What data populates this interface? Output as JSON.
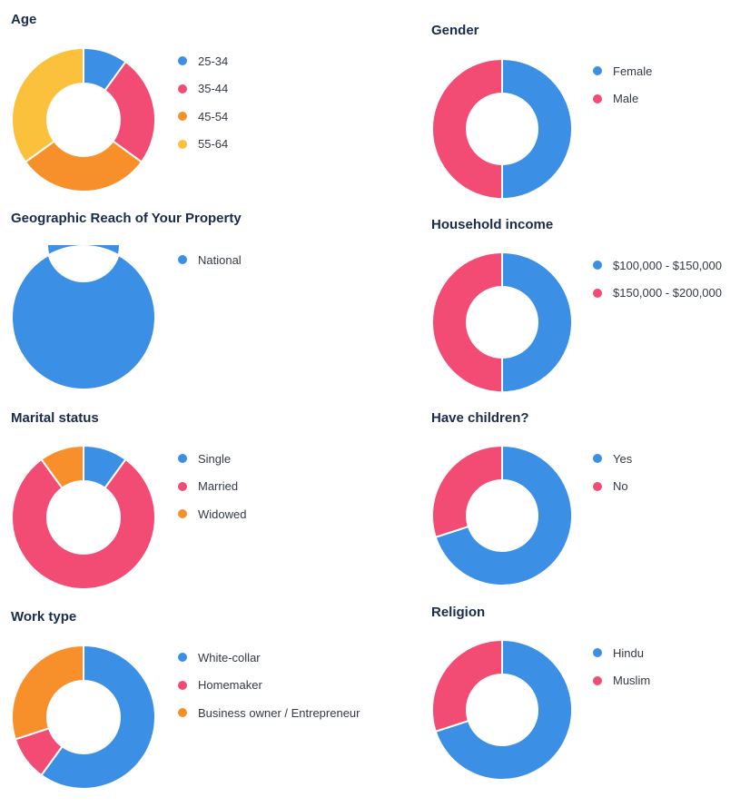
{
  "colors": {
    "blue": "#3b8fe4",
    "pink": "#f24b74",
    "orange": "#f7902b",
    "yellow": "#fbc13d"
  },
  "chart_data": [
    {
      "id": "age",
      "type": "pie",
      "title": "Age",
      "categories": [
        "25-34",
        "35-44",
        "45-54",
        "55-64"
      ],
      "values": [
        10,
        25,
        30,
        35
      ],
      "colors": [
        "#3b8fe4",
        "#f24b74",
        "#f7902b",
        "#fbc13d"
      ]
    },
    {
      "id": "gender",
      "type": "pie",
      "title": "Gender",
      "categories": [
        "Female",
        "Male"
      ],
      "values": [
        50,
        50
      ],
      "colors": [
        "#3b8fe4",
        "#f24b74"
      ]
    },
    {
      "id": "geo",
      "type": "pie",
      "title": "Geographic Reach of Your Property",
      "categories": [
        "National"
      ],
      "values": [
        100
      ],
      "colors": [
        "#3b8fe4"
      ]
    },
    {
      "id": "income",
      "type": "pie",
      "title": "Household income",
      "categories": [
        "$100,000 - $150,000",
        "$150,000 - $200,000"
      ],
      "values": [
        50,
        50
      ],
      "colors": [
        "#3b8fe4",
        "#f24b74"
      ]
    },
    {
      "id": "marital",
      "type": "pie",
      "title": "Marital status",
      "categories": [
        "Single",
        "Married",
        "Widowed"
      ],
      "values": [
        10,
        80,
        10
      ],
      "colors": [
        "#3b8fe4",
        "#f24b74",
        "#f7902b"
      ]
    },
    {
      "id": "children",
      "type": "pie",
      "title": "Have children?",
      "categories": [
        "Yes",
        "No"
      ],
      "values": [
        70,
        30
      ],
      "colors": [
        "#3b8fe4",
        "#f24b74"
      ]
    },
    {
      "id": "work",
      "type": "pie",
      "title": "Work type",
      "categories": [
        "White-collar",
        "Homemaker",
        "Business owner / Entrepreneur"
      ],
      "values": [
        60,
        10,
        30
      ],
      "colors": [
        "#3b8fe4",
        "#f24b74",
        "#f7902b"
      ]
    },
    {
      "id": "religion",
      "type": "pie",
      "title": "Religion",
      "categories": [
        "Hindu",
        "Muslim"
      ],
      "values": [
        70,
        30
      ],
      "colors": [
        "#3b8fe4",
        "#f24b74"
      ]
    }
  ]
}
